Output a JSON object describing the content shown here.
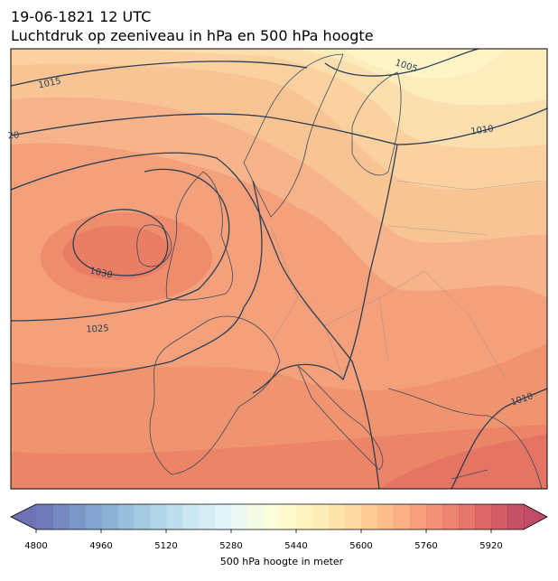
{
  "header": {
    "date": "19-06-1821 12 UTC",
    "title": "Luchtdruk op zeeniveau in hPa en 500 hPa hoogte"
  },
  "map": {
    "isobar_labels": [
      "1015",
      "1005",
      "1010",
      "20",
      "1030",
      "1025",
      "1010"
    ]
  },
  "colorbar": {
    "label": "500 hPa hoogte in meter",
    "lim": [
      4800,
      6000
    ],
    "ticks": [
      4800,
      4960,
      5120,
      5280,
      5440,
      5600,
      5760,
      5920
    ]
  }
}
